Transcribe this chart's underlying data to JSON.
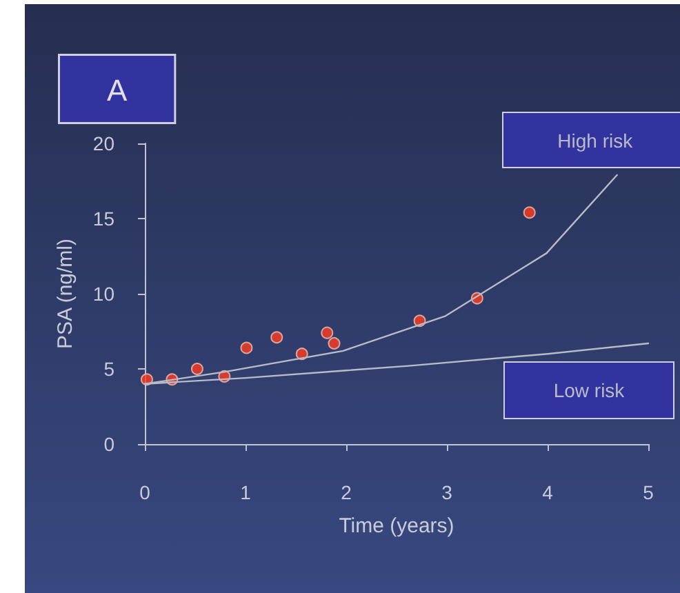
{
  "chart_data": {
    "type": "scatter",
    "xlabel": "Time (years)",
    "ylabel": "PSA (ng/ml)",
    "annotations": [
      "A"
    ],
    "xlim": [
      0,
      5
    ],
    "xticks": [
      0,
      1,
      2,
      3,
      4,
      5
    ],
    "ylim": [
      0,
      20
    ],
    "yticks": [
      0,
      5,
      10,
      15,
      20
    ],
    "grid": false,
    "marker": "circle",
    "series": [
      {
        "color": "#ff3b1f",
        "x": [
          0.02,
          0.27,
          0.52,
          0.79,
          1.01,
          1.31,
          1.56,
          1.81,
          1.88,
          2.73,
          3.3,
          3.82
        ],
        "values": [
          4.3,
          4.3,
          5.0,
          4.5,
          6.4,
          7.1,
          6.0,
          7.4,
          6.7,
          8.2,
          9.7,
          15.4
        ]
      },
      {
        "type": "line",
        "name": "High risk",
        "color": "#b8bcc8",
        "marker": "none",
        "x": [
          0,
          0.79,
          1.97,
          2.98,
          3.99,
          4.69
        ],
        "values": [
          4.0,
          4.8,
          6.2,
          8.5,
          12.7,
          17.9
        ]
      },
      {
        "type": "line",
        "name": "Low risk",
        "color": "#b8bcc8",
        "marker": "none",
        "x": [
          0,
          1,
          2,
          2.62,
          4,
          5
        ],
        "values": [
          4.0,
          4.4,
          4.9,
          5.2,
          6.0,
          6.7
        ]
      }
    ]
  }
}
